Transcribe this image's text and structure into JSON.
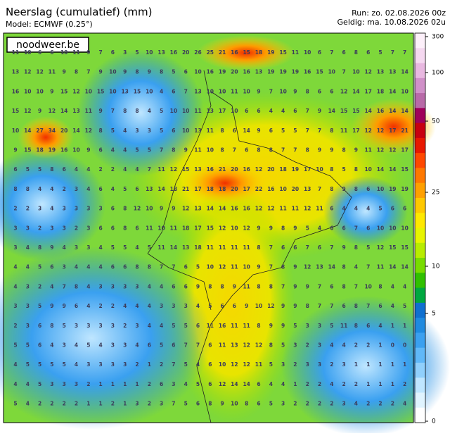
{
  "header": {
    "title": "Neerslag (cumulatief) (mm)",
    "model": "Model: ECMWF (0.25°)",
    "run": "Run: zo. 02.08.2026 00z",
    "valid": "Geldig: ma. 10.08.2026 02u"
  },
  "logo": "noodweer.be",
  "legend": {
    "labels": [
      "300",
      "100",
      "50",
      "25",
      "10",
      "5",
      "0"
    ]
  },
  "grid": [
    [
      11,
      10,
      6,
      6,
      10,
      11,
      9,
      7,
      6,
      3,
      5,
      10,
      13,
      16,
      20,
      26,
      25,
      21,
      16,
      15,
      18,
      19,
      15,
      11,
      10,
      6,
      7,
      6,
      8,
      6,
      5,
      7,
      7
    ],
    [
      13,
      12,
      12,
      11,
      9,
      8,
      7,
      9,
      10,
      9,
      8,
      9,
      8,
      5,
      6,
      10,
      16,
      19,
      20,
      16,
      13,
      19,
      19,
      19,
      16,
      15,
      10,
      7,
      10,
      12,
      13,
      13,
      14
    ],
    [
      16,
      10,
      10,
      9,
      15,
      12,
      10,
      15,
      10,
      13,
      15,
      10,
      4,
      6,
      7,
      13,
      10,
      10,
      11,
      10,
      9,
      7,
      10,
      9,
      8,
      6,
      6,
      12,
      14,
      17,
      18,
      14,
      10
    ],
    [
      15,
      12,
      9,
      12,
      14,
      13,
      11,
      9,
      7,
      8,
      8,
      4,
      5,
      10,
      10,
      11,
      13,
      17,
      10,
      6,
      6,
      4,
      4,
      6,
      7,
      9,
      14,
      15,
      15,
      14,
      16,
      14,
      14
    ],
    [
      10,
      14,
      27,
      34,
      20,
      14,
      12,
      8,
      5,
      4,
      3,
      3,
      5,
      6,
      10,
      13,
      11,
      8,
      6,
      14,
      9,
      6,
      5,
      5,
      7,
      7,
      8,
      11,
      17,
      12,
      12,
      17,
      21
    ],
    [
      9,
      15,
      18,
      19,
      16,
      10,
      9,
      6,
      4,
      4,
      5,
      5,
      7,
      8,
      9,
      11,
      10,
      8,
      7,
      6,
      8,
      8,
      7,
      7,
      8,
      9,
      9,
      8,
      9,
      11,
      12,
      12,
      17
    ],
    [
      6,
      5,
      5,
      8,
      6,
      4,
      4,
      2,
      2,
      4,
      4,
      7,
      11,
      12,
      15,
      13,
      16,
      21,
      20,
      16,
      12,
      20,
      18,
      19,
      17,
      10,
      8,
      5,
      8,
      10,
      14,
      14,
      15
    ],
    [
      8,
      8,
      4,
      4,
      2,
      3,
      4,
      6,
      4,
      5,
      6,
      13,
      14,
      18,
      21,
      17,
      18,
      18,
      20,
      17,
      22,
      16,
      10,
      20,
      13,
      7,
      8,
      9,
      8,
      6,
      10,
      19,
      19
    ],
    [
      2,
      2,
      3,
      4,
      3,
      3,
      3,
      3,
      6,
      8,
      12,
      10,
      9,
      9,
      12,
      13,
      14,
      14,
      16,
      16,
      12,
      12,
      11,
      11,
      12,
      11,
      6,
      4,
      4,
      4,
      5,
      6,
      6
    ],
    [
      3,
      3,
      2,
      3,
      3,
      2,
      3,
      6,
      6,
      8,
      6,
      11,
      10,
      11,
      18,
      17,
      15,
      12,
      10,
      12,
      9,
      9,
      8,
      9,
      5,
      4,
      6,
      6,
      7,
      6,
      10,
      10,
      10
    ],
    [
      3,
      4,
      8,
      9,
      4,
      3,
      3,
      4,
      5,
      5,
      4,
      5,
      11,
      14,
      13,
      18,
      11,
      11,
      11,
      11,
      8,
      7,
      6,
      6,
      7,
      6,
      7,
      9,
      8,
      5,
      12,
      15,
      15
    ],
    [
      4,
      4,
      5,
      6,
      3,
      4,
      4,
      4,
      6,
      6,
      8,
      8,
      7,
      7,
      6,
      5,
      10,
      12,
      11,
      10,
      9,
      7,
      8,
      9,
      12,
      13,
      14,
      8,
      4,
      7,
      11,
      14,
      14
    ],
    [
      4,
      3,
      2,
      4,
      7,
      8,
      4,
      3,
      3,
      3,
      3,
      4,
      4,
      6,
      6,
      9,
      8,
      8,
      9,
      11,
      8,
      8,
      7,
      9,
      9,
      7,
      6,
      8,
      7,
      10,
      8,
      4,
      4
    ],
    [
      3,
      3,
      5,
      9,
      9,
      6,
      4,
      2,
      2,
      4,
      4,
      4,
      3,
      3,
      3,
      4,
      5,
      6,
      6,
      9,
      10,
      12,
      9,
      9,
      8,
      7,
      7,
      6,
      8,
      7,
      6,
      4,
      5
    ],
    [
      2,
      3,
      6,
      8,
      5,
      3,
      3,
      3,
      3,
      2,
      3,
      4,
      4,
      5,
      5,
      6,
      11,
      16,
      11,
      11,
      8,
      9,
      9,
      5,
      3,
      3,
      5,
      11,
      8,
      6,
      4,
      1,
      1
    ],
    [
      5,
      5,
      6,
      4,
      3,
      4,
      5,
      4,
      3,
      3,
      4,
      6,
      5,
      6,
      7,
      7,
      6,
      11,
      13,
      12,
      12,
      8,
      5,
      3,
      2,
      3,
      4,
      4,
      2,
      2,
      1,
      0,
      0
    ],
    [
      4,
      5,
      5,
      5,
      5,
      4,
      3,
      3,
      3,
      3,
      2,
      1,
      2,
      7,
      5,
      4,
      6,
      10,
      12,
      12,
      11,
      5,
      3,
      2,
      3,
      3,
      2,
      3,
      1,
      1,
      1,
      1,
      1
    ],
    [
      4,
      4,
      5,
      3,
      3,
      3,
      2,
      1,
      1,
      1,
      1,
      2,
      6,
      3,
      4,
      5,
      6,
      12,
      14,
      14,
      6,
      4,
      4,
      1,
      2,
      2,
      4,
      2,
      2,
      1,
      1,
      1,
      2
    ],
    [
      5,
      4,
      2,
      2,
      2,
      2,
      1,
      1,
      2,
      1,
      3,
      2,
      3,
      7,
      5,
      6,
      8,
      9,
      10,
      8,
      6,
      5,
      3,
      2,
      2,
      2,
      2,
      3,
      4,
      2,
      2,
      2,
      4
    ]
  ]
}
